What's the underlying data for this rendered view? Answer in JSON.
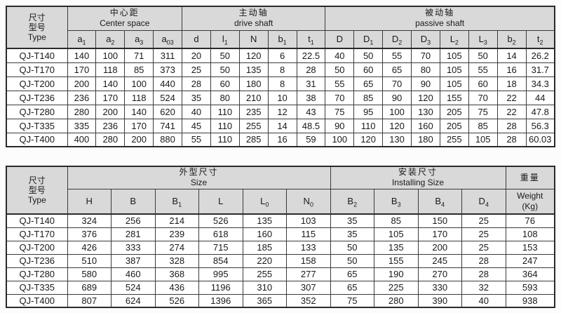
{
  "colors": {
    "header_background": "#d9d9d9",
    "cell_background": "#ffffff",
    "border": "#2a2a2a",
    "text": "#191919"
  },
  "tables": [
    {
      "name": "shaft-dimensions-table",
      "corner_lines": [
        "尺寸",
        "型号",
        "Type"
      ],
      "groups": [
        {
          "zh": "中心距",
          "en": "Center space",
          "span": 4
        },
        {
          "zh": "主动轴",
          "en": "drive shaft",
          "span": 5
        },
        {
          "zh": "被动轴",
          "en": "passive shaft",
          "span": 8
        }
      ],
      "columns": [
        {
          "base": "a",
          "sub": "1"
        },
        {
          "base": "a",
          "sub": "2"
        },
        {
          "base": "a",
          "sub": "3"
        },
        {
          "base": "a",
          "sub": "03"
        },
        {
          "base": "d",
          "sub": ""
        },
        {
          "base": "l",
          "sub": "1"
        },
        {
          "base": "N",
          "sub": ""
        },
        {
          "base": "b",
          "sub": "1"
        },
        {
          "base": "t",
          "sub": "1"
        },
        {
          "base": "D",
          "sub": ""
        },
        {
          "base": "D",
          "sub": "1"
        },
        {
          "base": "D",
          "sub": "2"
        },
        {
          "base": "D",
          "sub": "3"
        },
        {
          "base": "L",
          "sub": "2"
        },
        {
          "base": "L",
          "sub": "3"
        },
        {
          "base": "b",
          "sub": "2"
        },
        {
          "base": "t",
          "sub": "2"
        }
      ],
      "rows": [
        {
          "type": "QJ-T140",
          "values": [
            140,
            100,
            71,
            311,
            20,
            50,
            120,
            6,
            22.5,
            40,
            50,
            55,
            70,
            105,
            50,
            14,
            26.2
          ]
        },
        {
          "type": "QJ-T170",
          "values": [
            170,
            118,
            85,
            373,
            25,
            50,
            135,
            8,
            28,
            50,
            60,
            65,
            80,
            105,
            55,
            16,
            31.7
          ]
        },
        {
          "type": "QJ-T200",
          "values": [
            200,
            140,
            100,
            440,
            28,
            60,
            180,
            8,
            31,
            55,
            65,
            70,
            90,
            105,
            60,
            18,
            34.3
          ]
        },
        {
          "type": "QJ-T236",
          "values": [
            236,
            170,
            118,
            524,
            35,
            80,
            210,
            10,
            38,
            70,
            85,
            90,
            120,
            155,
            70,
            22,
            44
          ]
        },
        {
          "type": "QJ-T280",
          "values": [
            280,
            200,
            140,
            620,
            40,
            110,
            235,
            12,
            43,
            75,
            95,
            100,
            130,
            205,
            75,
            22,
            47.8
          ]
        },
        {
          "type": "QJ-T335",
          "values": [
            335,
            236,
            170,
            741,
            45,
            110,
            255,
            14,
            48.5,
            90,
            110,
            120,
            160,
            205,
            85,
            28,
            56.3
          ]
        },
        {
          "type": "QJ-T400",
          "values": [
            400,
            280,
            200,
            880,
            55,
            110,
            285,
            16,
            59,
            100,
            120,
            130,
            180,
            255,
            105,
            28,
            60.03
          ]
        }
      ]
    },
    {
      "name": "size-installing-weight-table",
      "corner_lines": [
        "尺寸",
        "型号",
        "Type"
      ],
      "groups": [
        {
          "zh": "外型尺寸",
          "en": "Size",
          "span": 6
        },
        {
          "zh": "安装尺寸",
          "en": "Installing Size",
          "span": 4
        }
      ],
      "weight_header": {
        "zh": "重量",
        "en_lines": [
          "Weight",
          "(Kg)"
        ]
      },
      "columns": [
        {
          "base": "H",
          "sub": ""
        },
        {
          "base": "B",
          "sub": ""
        },
        {
          "base": "B",
          "sub": "1"
        },
        {
          "base": "L",
          "sub": ""
        },
        {
          "base": "L",
          "sub": "0"
        },
        {
          "base": "N",
          "sub": "0"
        },
        {
          "base": "B",
          "sub": "2"
        },
        {
          "base": "B",
          "sub": "3"
        },
        {
          "base": "B",
          "sub": "4"
        },
        {
          "base": "D",
          "sub": "4"
        }
      ],
      "rows": [
        {
          "type": "QJ-T140",
          "values": [
            324,
            256,
            214,
            526,
            135,
            103,
            35,
            85,
            150,
            25,
            76
          ]
        },
        {
          "type": "QJ-T170",
          "values": [
            376,
            281,
            239,
            618,
            160,
            115,
            35,
            105,
            170,
            25,
            108
          ]
        },
        {
          "type": "QJ-T200",
          "values": [
            426,
            333,
            274,
            715,
            185,
            133,
            50,
            135,
            200,
            25,
            153
          ]
        },
        {
          "type": "QJ-T236",
          "values": [
            510,
            387,
            328,
            854,
            220,
            158,
            50,
            155,
            245,
            28,
            247
          ]
        },
        {
          "type": "QJ-T280",
          "values": [
            580,
            460,
            368,
            995,
            255,
            277,
            65,
            190,
            270,
            28,
            364
          ]
        },
        {
          "type": "QJ-T335",
          "values": [
            689,
            524,
            436,
            1196,
            310,
            307,
            65,
            225,
            330,
            32,
            593
          ]
        },
        {
          "type": "QJ-T400",
          "values": [
            807,
            624,
            526,
            1396,
            365,
            352,
            75,
            280,
            390,
            40,
            938
          ]
        }
      ]
    }
  ]
}
